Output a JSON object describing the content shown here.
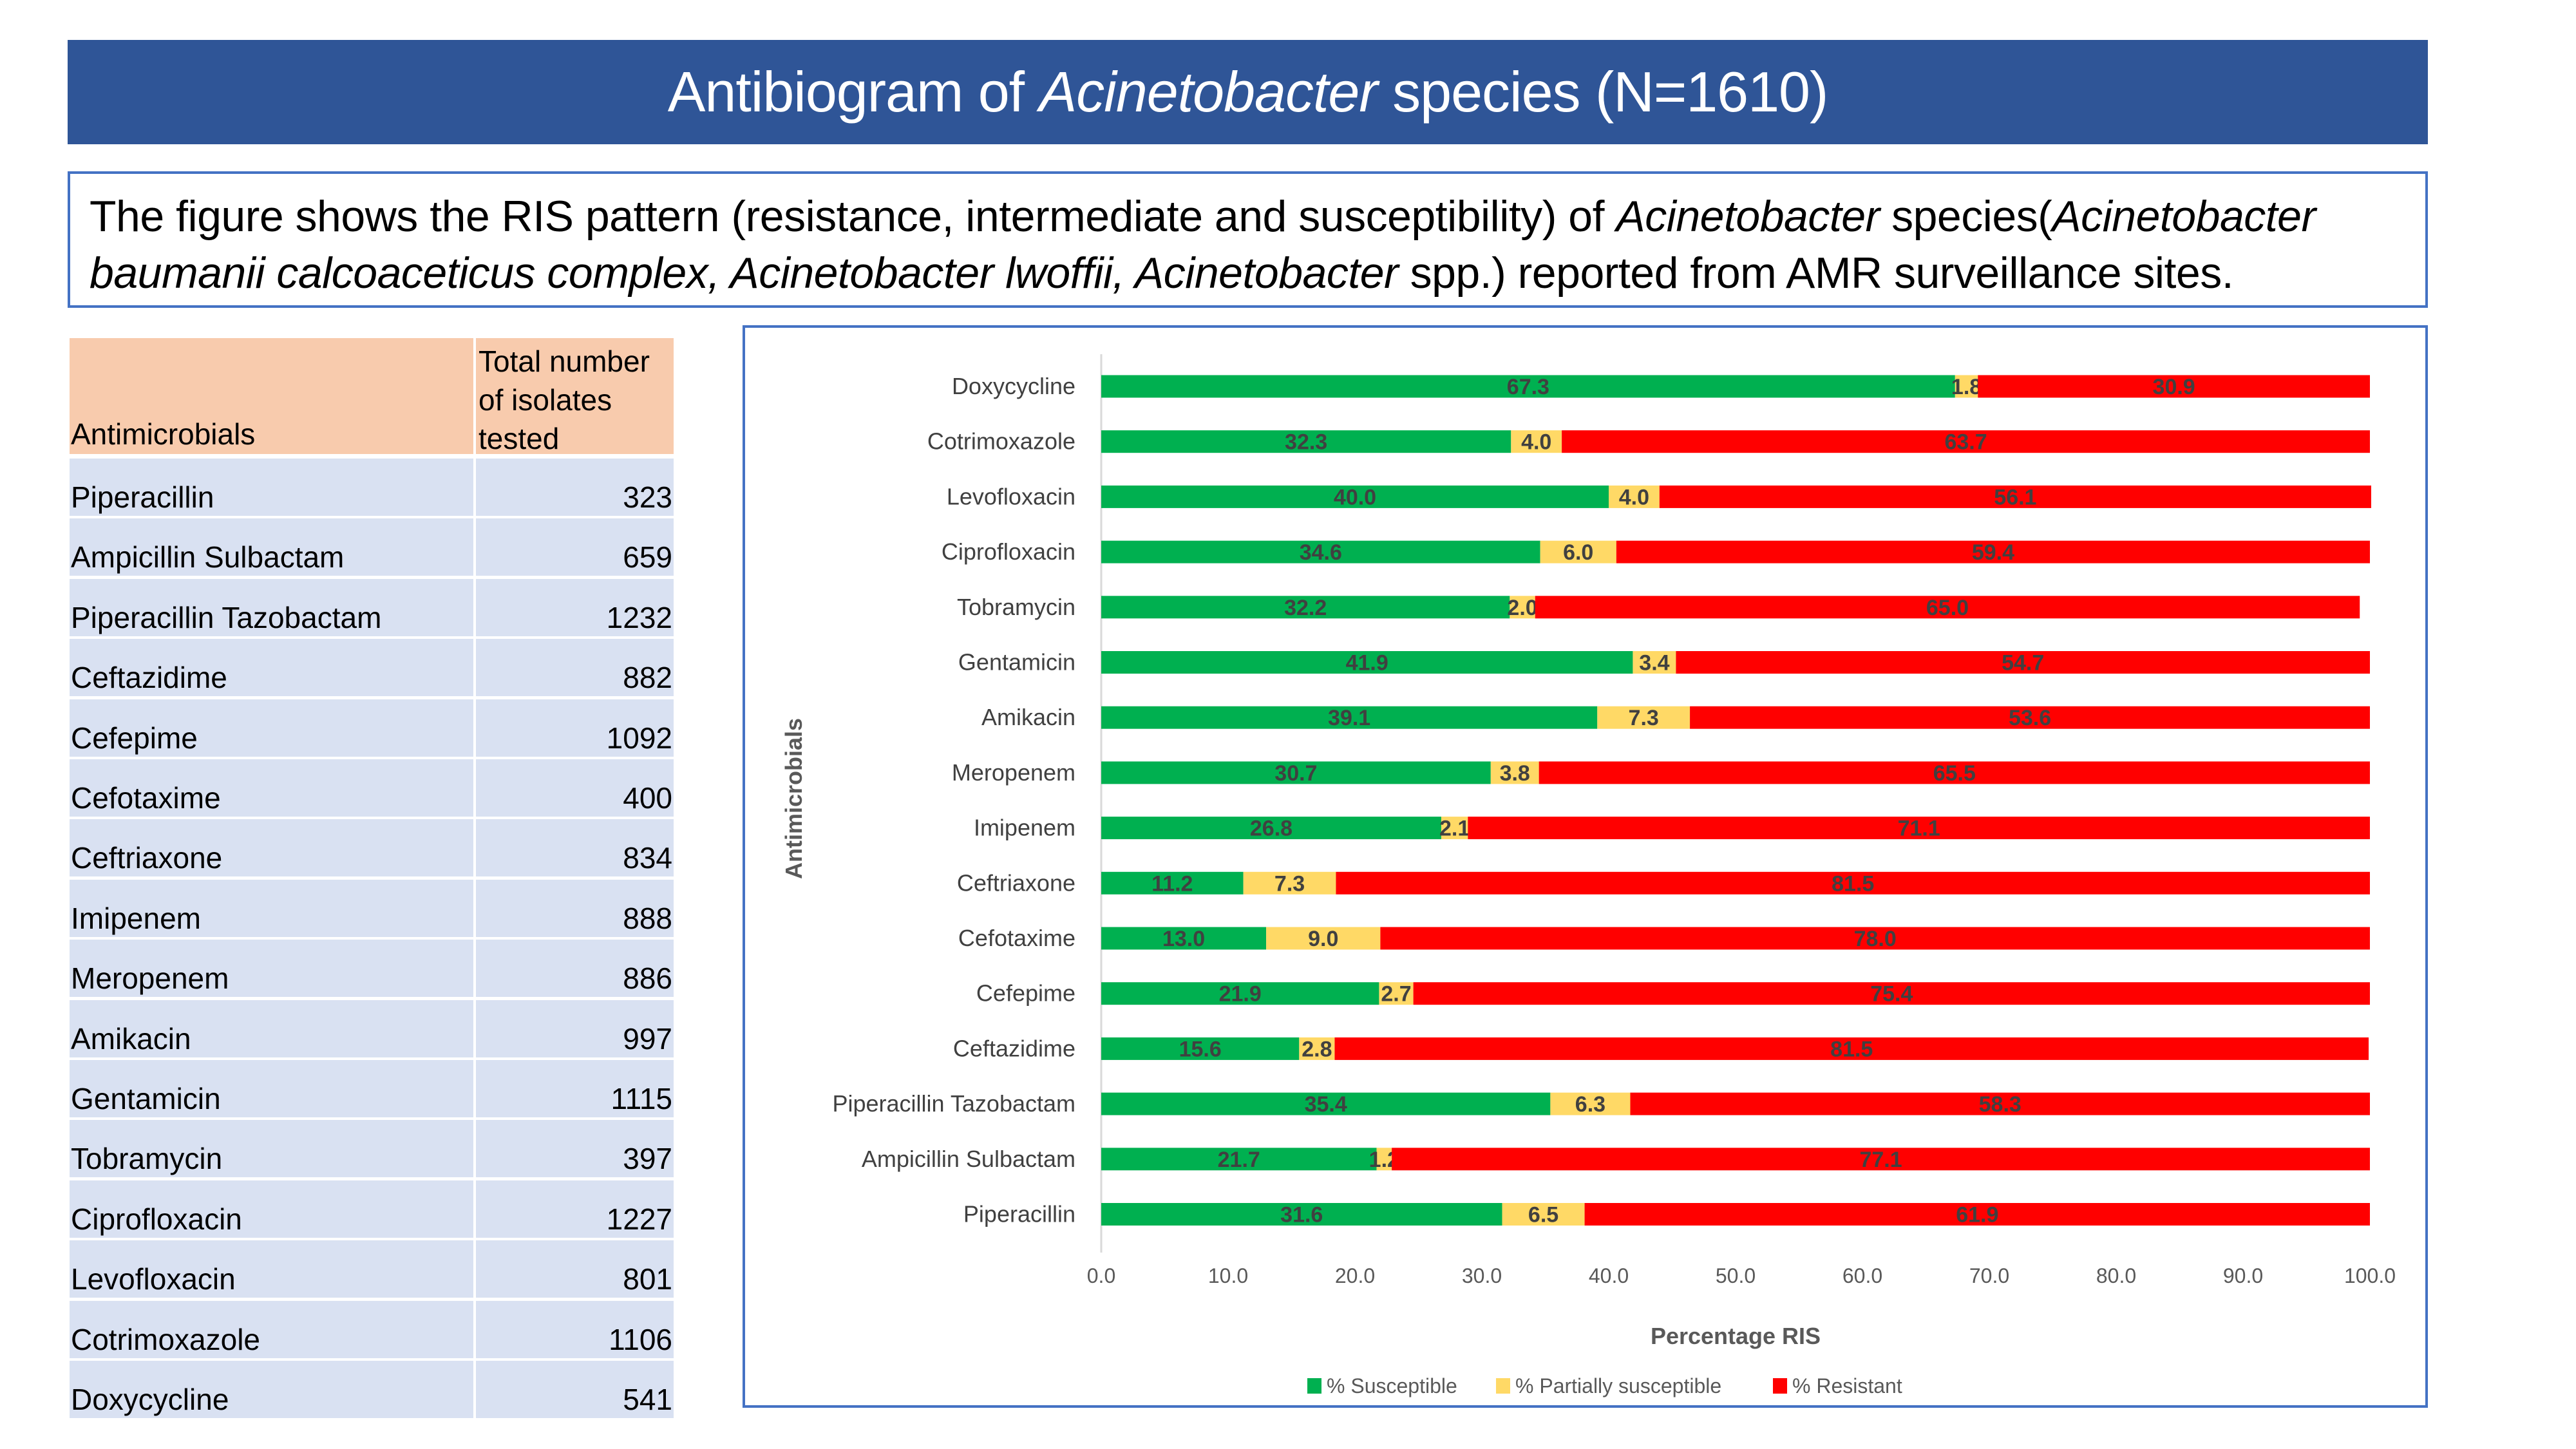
{
  "header": {
    "title_pre": "Antibiogram of ",
    "title_italic": "Acinetobacter",
    "title_post": " species (N=1610)"
  },
  "description": {
    "p1": "The figure shows the RIS pattern (resistance, intermediate and susceptibility) of ",
    "i1": "Acinetobacter",
    "p2": " species(",
    "i2": "Acinetobacter baumanii calcoaceticus complex, Acinetobacter lwoffii, Acinetobacter",
    "p3": " spp.) reported from AMR surveillance sites."
  },
  "table": {
    "col1_header": "Antimicrobials",
    "col2_header": "Total number of isolates tested",
    "rows": [
      {
        "name": "Piperacillin",
        "count": "323"
      },
      {
        "name": "Ampicillin Sulbactam",
        "count": "659"
      },
      {
        "name": "Piperacillin Tazobactam",
        "count": "1232"
      },
      {
        "name": "Ceftazidime",
        "count": "882"
      },
      {
        "name": "Cefepime",
        "count": "1092"
      },
      {
        "name": "Cefotaxime",
        "count": "400"
      },
      {
        "name": "Ceftriaxone",
        "count": "834"
      },
      {
        "name": "Imipenem",
        "count": "888"
      },
      {
        "name": "Meropenem",
        "count": "886"
      },
      {
        "name": "Amikacin",
        "count": "997"
      },
      {
        "name": "Gentamicin",
        "count": "1115"
      },
      {
        "name": "Tobramycin",
        "count": "397"
      },
      {
        "name": "Ciprofloxacin",
        "count": "1227"
      },
      {
        "name": "Levofloxacin",
        "count": "801"
      },
      {
        "name": "Cotrimoxazole",
        "count": "1106"
      },
      {
        "name": "Doxycycline",
        "count": "541"
      }
    ]
  },
  "chart_data": {
    "type": "bar",
    "orientation": "horizontal",
    "stacked": true,
    "categories": [
      "Doxycycline",
      "Cotrimoxazole",
      "Levofloxacin",
      "Ciprofloxacin",
      "Tobramycin",
      "Gentamicin",
      "Amikacin",
      "Meropenem",
      "Imipenem",
      "Ceftriaxone",
      "Cefotaxime",
      "Cefepime",
      "Ceftazidime",
      "Piperacillin Tazobactam",
      "Ampicillin Sulbactam",
      "Piperacillin"
    ],
    "series": [
      {
        "name": "% Susceptible",
        "color": "#00B050",
        "values": [
          67.3,
          32.3,
          40.0,
          34.6,
          32.2,
          41.9,
          39.1,
          30.7,
          26.8,
          11.2,
          13.0,
          21.9,
          15.6,
          35.4,
          21.7,
          31.6
        ]
      },
      {
        "name": "% Partially susceptible",
        "color": "#FFD966",
        "values": [
          1.8,
          4.0,
          4.0,
          6.0,
          2.0,
          3.4,
          7.3,
          3.8,
          2.1,
          7.3,
          9.0,
          2.7,
          2.8,
          6.3,
          1.2,
          6.5
        ]
      },
      {
        "name": "% Resistant",
        "color": "#FF0000",
        "values": [
          30.9,
          63.7,
          56.1,
          59.4,
          65.0,
          54.7,
          53.6,
          65.5,
          71.1,
          81.5,
          78.0,
          75.4,
          81.5,
          58.3,
          77.1,
          61.9
        ]
      }
    ],
    "xlabel": "Percentage RIS",
    "ylabel": "Antimicrobials",
    "xlim": [
      0,
      100
    ],
    "xticks": [
      "0.0",
      "10.0",
      "20.0",
      "30.0",
      "40.0",
      "50.0",
      "60.0",
      "70.0",
      "80.0",
      "90.0",
      "100.0"
    ],
    "grid": false,
    "legend_position": "bottom"
  }
}
